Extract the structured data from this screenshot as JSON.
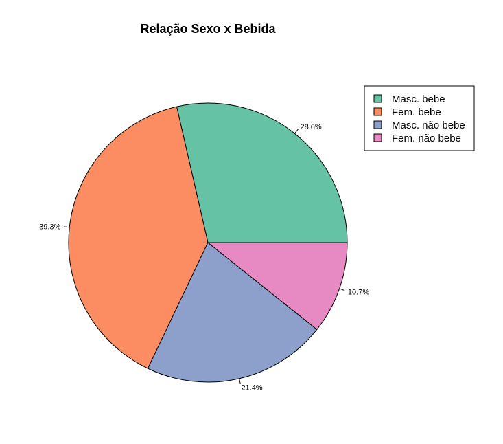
{
  "chart_data": {
    "type": "pie",
    "title": "Relação Sexo x Bebida",
    "categories": [
      "Masc. bebe",
      "Fem. bebe",
      "Masc. não bebe",
      "Fem. não bebe"
    ],
    "values": [
      28.6,
      39.3,
      21.4,
      10.7
    ],
    "labels": [
      "28.6%",
      "39.3%",
      "21.4%",
      "10.7%"
    ],
    "colors": [
      "#66c2a5",
      "#fc8d62",
      "#8da0cb",
      "#e78ac3"
    ],
    "direction": "counterclockwise",
    "start_angle_deg": 0,
    "legend": {
      "position": "top-right",
      "entries": [
        "Masc. bebe",
        "Fem. bebe",
        "Masc. não bebe",
        "Fem. não bebe"
      ]
    }
  }
}
